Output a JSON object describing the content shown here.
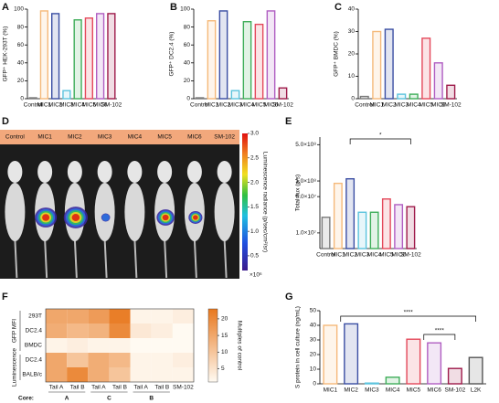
{
  "chart_data": [
    {
      "type": "bar",
      "panel": "A",
      "y_label": "GFP⁺ HEK-293T (%)",
      "categories": [
        "Control",
        "MIC1",
        "MIC2",
        "MIC3",
        "MIC4",
        "MIC5",
        "MIC6",
        "SM-102"
      ],
      "values": [
        1,
        98,
        95,
        9,
        88,
        90,
        95,
        95
      ],
      "colors": [
        "#7a7a7a",
        "#f5b97a",
        "#3a4ea3",
        "#5bc3dd",
        "#3fae5a",
        "#e4485a",
        "#b05ec2",
        "#9e1a4a"
      ],
      "ylim": [
        0,
        100
      ],
      "yticks": [
        0,
        20,
        40,
        60,
        80,
        100
      ]
    },
    {
      "type": "bar",
      "panel": "B",
      "y_label": "GFP⁺ DC2.4 (%)",
      "categories": [
        "Control",
        "MIC1",
        "MIC2",
        "MIC3",
        "MIC4",
        "MIC5",
        "MIC6",
        "SM-102"
      ],
      "values": [
        1,
        87,
        98,
        9,
        86,
        83,
        98,
        12
      ],
      "colors": [
        "#7a7a7a",
        "#f5b97a",
        "#3a4ea3",
        "#5bc3dd",
        "#3fae5a",
        "#e4485a",
        "#b05ec2",
        "#9e1a4a"
      ],
      "ylim": [
        0,
        100
      ],
      "yticks": [
        0,
        20,
        40,
        60,
        80,
        100
      ]
    },
    {
      "type": "bar",
      "panel": "C",
      "y_label": "GFP⁺ BMDC (%)",
      "categories": [
        "Control",
        "MIC1",
        "MIC2",
        "MIC3",
        "MIC4",
        "MIC5",
        "MIC6",
        "SM-102"
      ],
      "values": [
        1,
        30,
        31,
        2,
        2,
        27,
        16,
        6
      ],
      "colors": [
        "#7a7a7a",
        "#f5b97a",
        "#3a4ea3",
        "#5bc3dd",
        "#3fae5a",
        "#e4485a",
        "#b05ec2",
        "#9e1a4a"
      ],
      "ylim": [
        0,
        40
      ],
      "yticks": [
        0,
        10,
        20,
        30,
        40
      ]
    },
    {
      "type": "image",
      "panel": "D",
      "categories": [
        "Control",
        "MIC1",
        "MIC2",
        "MIC3",
        "MIC4",
        "MIC5",
        "MIC6",
        "SM-102"
      ],
      "colorbar_label": "Luminescence radiance (p/sec/cm²/sr)",
      "colorbar_unit": "×10⁶",
      "colorbar_lim": [
        0.2,
        3.0
      ],
      "colorbar_ticks": [
        {
          "value": 0.5,
          "label": "0.5"
        },
        {
          "value": 1,
          "label": "1.0"
        },
        {
          "value": 1.5,
          "label": "1.5"
        },
        {
          "value": 2,
          "label": "2.0"
        },
        {
          "value": 2.5,
          "label": "2.5"
        },
        {
          "value": 3,
          "label": "3.0"
        }
      ]
    },
    {
      "type": "bar",
      "panel": "E",
      "y_label": "Total flux (p/s)",
      "log_scale": true,
      "categories": [
        "Control",
        "MIC1",
        "MIC2",
        "MIC3",
        "MIC4",
        "MIC5",
        "MIC6",
        "SM-102"
      ],
      "values": [
        20000000,
        90000000,
        110000000,
        25000000,
        25000000,
        45000000,
        35000000,
        32000000
      ],
      "colors": [
        "#7a7a7a",
        "#f5b97a",
        "#3a4ea3",
        "#5bc3dd",
        "#3fae5a",
        "#e4485a",
        "#b05ec2",
        "#9e1a4a"
      ],
      "ylim": [
        5000000,
        700000000
      ],
      "yticks": [
        {
          "value": 10000000,
          "label": "1.0×10⁷"
        },
        {
          "value": 50000000,
          "label": "5.0×10⁷"
        },
        {
          "value": 100000000,
          "label": "1.0×10⁸"
        },
        {
          "value": 500000000,
          "label": "5.0×10⁸"
        }
      ],
      "annotations": [
        "*"
      ]
    },
    {
      "type": "heatmap",
      "panel": "F",
      "rows": [
        "293T",
        "DC2.4",
        "BMDC",
        "DC2.4",
        "BALB/c"
      ],
      "row_groups": [
        "GFP MFI",
        "Luminescence"
      ],
      "columns": [
        "Tail A",
        "Tail B",
        "Tail A",
        "Tail B",
        "Tail A",
        "Tail B",
        "SM-102"
      ],
      "core_title": "Core:",
      "cores": [
        "A",
        "C",
        "B"
      ],
      "core_colors": [
        "#e8961e",
        "#d9352a",
        "#5bc3dd"
      ],
      "values": [
        [
          15,
          15,
          17,
          22,
          2,
          2,
          3
        ],
        [
          14,
          12,
          13,
          20,
          4,
          3,
          1
        ],
        [
          2,
          3,
          2,
          2,
          1,
          1,
          1
        ],
        [
          15,
          10,
          14,
          12,
          2,
          2,
          3
        ],
        [
          15,
          20,
          14,
          10,
          2,
          2,
          2
        ]
      ],
      "colorbar_label": "Multiples of control",
      "clim": [
        1,
        23
      ],
      "colorbar_ticks": [
        5,
        10,
        15,
        20
      ]
    },
    {
      "type": "bar",
      "panel": "G",
      "y_label": "S protein in cell culture (ng/mL)",
      "categories": [
        "MIC1",
        "MIC2",
        "MIC3",
        "MIC4",
        "MIC5",
        "MIC6",
        "SM-102",
        "L2K"
      ],
      "values": [
        40,
        41,
        0.5,
        4.5,
        30.5,
        28,
        10.5,
        18
      ],
      "colors": [
        "#f5b97a",
        "#3a4ea3",
        "#5bc3dd",
        "#3fae5a",
        "#e4485a",
        "#b05ec2",
        "#9e1a4a",
        "#555555"
      ],
      "ylim": [
        0,
        50
      ],
      "yticks": [
        0,
        10,
        20,
        30,
        40,
        50
      ],
      "annotations": [
        "****",
        "****"
      ]
    }
  ]
}
